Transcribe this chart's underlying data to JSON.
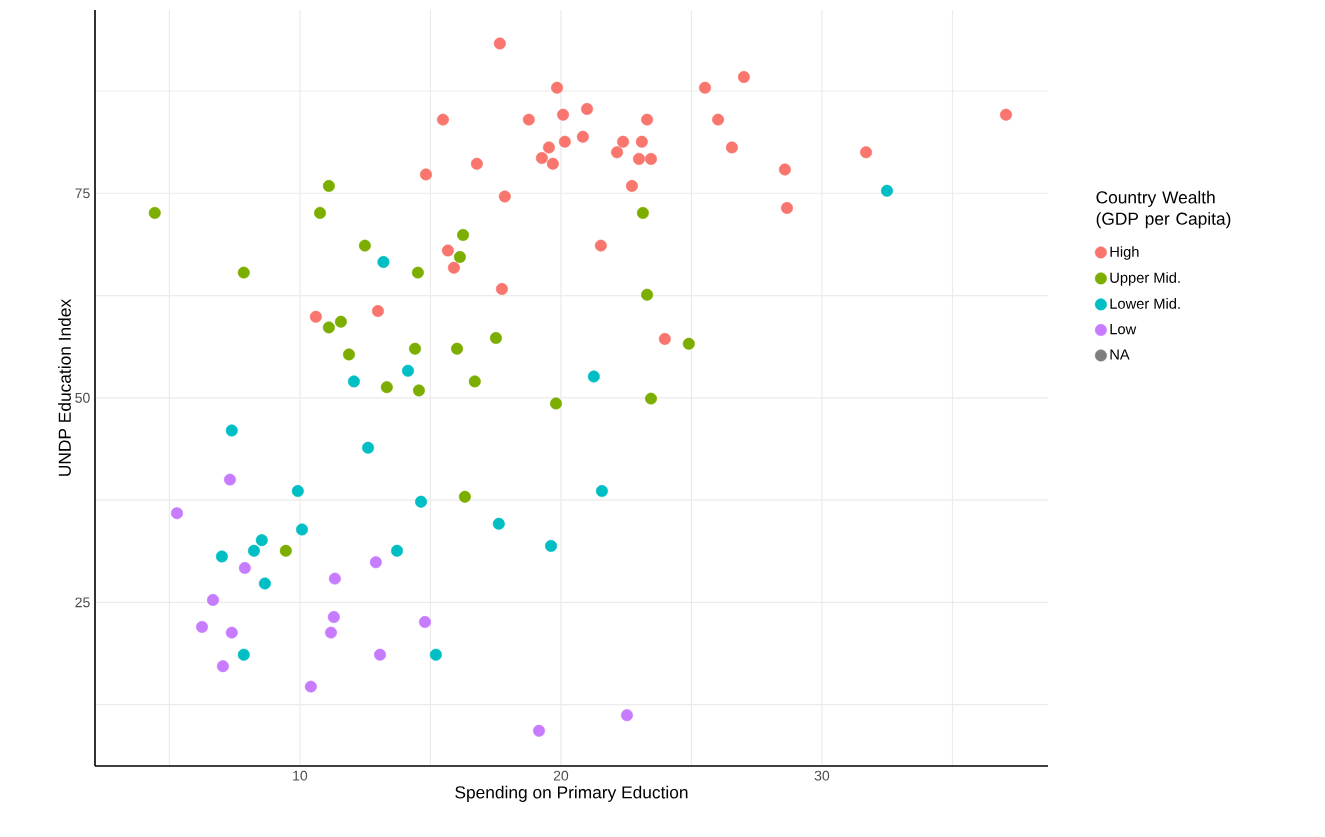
{
  "chart_data": {
    "type": "scatter",
    "xlabel": "Spending on Primary Eduction",
    "ylabel": "UNDP Education Index",
    "legend_title": "Country Wealth (GDP per Capita)",
    "legend": "right",
    "grid": true,
    "xlim": [
      2.15,
      38.66
    ],
    "ylim": [
      5.0,
      97.4
    ],
    "xticks": [
      {
        "value": 5,
        "label": null
      },
      10,
      {
        "value": 15,
        "label": null
      },
      20,
      {
        "value": 25,
        "label": null
      },
      30,
      {
        "value": 35,
        "label": null
      }
    ],
    "yticks": [
      {
        "value": 12.5,
        "label": null
      },
      25,
      {
        "value": 37.5,
        "label": null
      },
      50,
      {
        "value": 62.5,
        "label": null
      },
      75,
      {
        "value": 87.5,
        "label": null
      }
    ],
    "series": [
      {
        "name": "High",
        "color": "#f8766d",
        "x": [
          17.66,
          19.85,
          15.48,
          18.77,
          20.08,
          20.15,
          19.54,
          19.27,
          19.69,
          16.78,
          14.83,
          17.85,
          15.67,
          15.9,
          17.74,
          12.99,
          10.61,
          25.52,
          27.01,
          21.0,
          23.3,
          26.02,
          37.05,
          20.84,
          22.38,
          23.1,
          26.55,
          22.15,
          31.69,
          22.99,
          23.45,
          28.58,
          22.72,
          28.66,
          21.53,
          23.98
        ],
        "values": [
          93.3,
          87.9,
          84.0,
          84.0,
          84.6,
          81.3,
          80.6,
          79.3,
          78.6,
          78.6,
          77.3,
          74.6,
          68.0,
          65.9,
          63.3,
          60.6,
          59.9,
          87.9,
          89.2,
          85.3,
          84.0,
          84.0,
          84.6,
          81.9,
          81.3,
          81.3,
          80.6,
          80.0,
          80.0,
          79.2,
          79.2,
          77.9,
          75.9,
          73.2,
          68.6,
          57.2
        ]
      },
      {
        "name": "Upper Mid.",
        "color": "#7cae00",
        "x": [
          11.11,
          4.44,
          10.77,
          23.14,
          16.25,
          12.49,
          16.13,
          7.85,
          14.52,
          23.3,
          11.57,
          11.11,
          11.88,
          14.41,
          16.02,
          17.51,
          24.9,
          13.33,
          14.56,
          16.7,
          19.81,
          23.45,
          16.32,
          9.46
        ],
        "values": [
          75.9,
          72.6,
          72.6,
          72.6,
          69.9,
          68.6,
          67.2,
          65.3,
          65.3,
          62.6,
          59.3,
          58.6,
          55.3,
          56.0,
          56.0,
          57.3,
          56.6,
          51.3,
          50.9,
          52.0,
          49.3,
          49.9,
          37.9,
          31.3
        ]
      },
      {
        "name": "Lower Mid.",
        "color": "#00bfc4",
        "x": [
          13.2,
          14.14,
          12.07,
          32.49,
          21.26,
          7.39,
          12.61,
          9.92,
          14.64,
          17.62,
          19.62,
          10.08,
          8.54,
          8.24,
          7.01,
          13.72,
          8.66,
          7.85,
          15.21,
          21.57
        ],
        "values": [
          66.6,
          53.3,
          52.0,
          75.3,
          52.6,
          46.0,
          43.9,
          38.6,
          37.3,
          34.6,
          31.9,
          33.9,
          32.6,
          31.3,
          30.6,
          31.3,
          27.3,
          18.6,
          18.6,
          38.6
        ]
      },
      {
        "name": "Low",
        "color": "#c77cff",
        "x": [
          7.32,
          5.29,
          7.89,
          12.91,
          11.34,
          6.67,
          6.25,
          7.39,
          11.3,
          11.19,
          14.79,
          13.07,
          7.05,
          10.42,
          19.16,
          22.53
        ],
        "values": [
          40.0,
          35.9,
          29.2,
          29.9,
          27.9,
          25.3,
          22.0,
          21.3,
          23.2,
          21.3,
          22.6,
          18.6,
          17.2,
          14.7,
          9.3,
          11.2
        ]
      },
      {
        "name": "NA",
        "color": "#7f7f7f"
      }
    ]
  }
}
